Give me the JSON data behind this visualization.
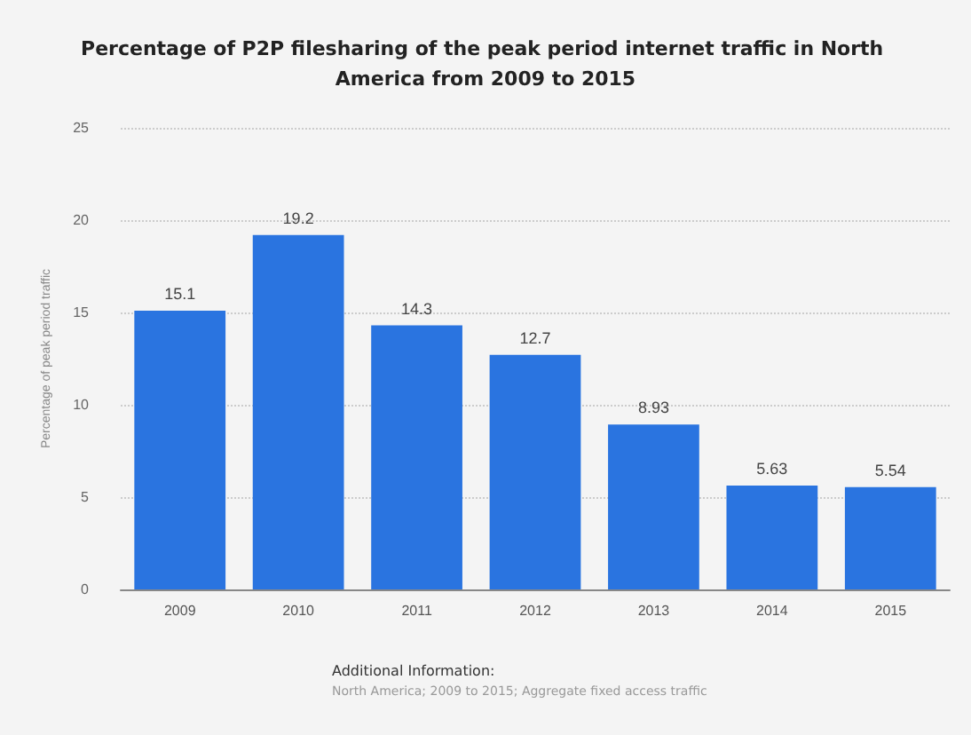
{
  "chart_data": {
    "type": "bar",
    "title": "Percentage of P2P filesharing of the peak period internet traffic in North America from 2009 to 2015",
    "ylabel": "Percentage of peak period traffic",
    "categories": [
      "2009",
      "2010",
      "2011",
      "2012",
      "2013",
      "2014",
      "2015"
    ],
    "values": [
      15.1,
      19.2,
      14.3,
      12.7,
      8.93,
      5.63,
      5.54
    ],
    "color": "#2a74e0",
    "ylim": [
      0,
      25
    ],
    "yticks": [
      0,
      5,
      10,
      15,
      20,
      25
    ],
    "grid": "y",
    "data_labels": true,
    "annotations": [
      "Additional Information:",
      "North America; 2009 to 2015; Aggregate fixed access traffic"
    ]
  }
}
